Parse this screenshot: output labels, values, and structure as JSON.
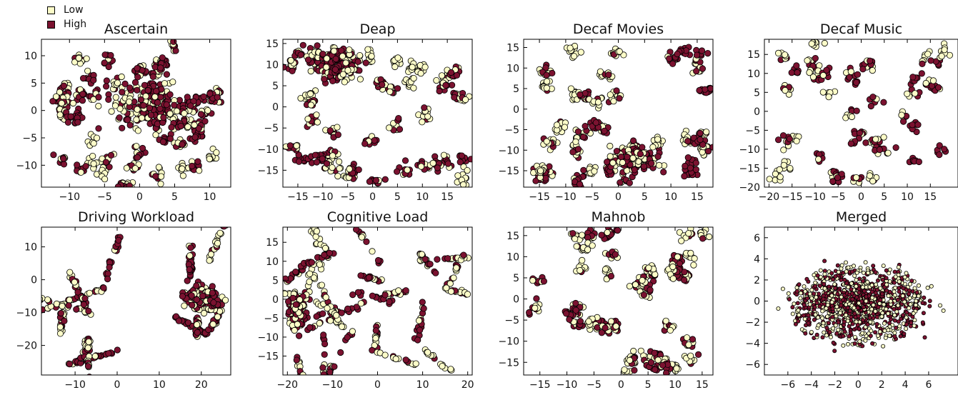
{
  "legend": {
    "low_label": "Low",
    "high_label": "High",
    "low_color": "#fcfcc8",
    "high_color": "#7b1230"
  },
  "chart_data": [
    {
      "type": "scatter",
      "title": "Ascertain",
      "xlim": [
        -14,
        13
      ],
      "ylim": [
        -14,
        13
      ],
      "xticks": [
        -10,
        -5,
        0,
        5,
        10
      ],
      "yticks": [
        -10,
        -5,
        0,
        5,
        10
      ],
      "pattern": "ring",
      "clusters": 48,
      "center_blob": [
        1,
        1,
        4.5,
        4.5
      ],
      "n": 700,
      "seed": 11
    },
    {
      "type": "scatter",
      "title": "Deap",
      "xlim": [
        -18,
        20
      ],
      "ylim": [
        -19,
        16
      ],
      "xticks": [
        -15,
        -10,
        -5,
        0,
        5,
        10,
        15
      ],
      "yticks": [
        -15,
        -10,
        -5,
        0,
        5,
        10,
        15
      ],
      "pattern": "clusters",
      "clusters": 40,
      "center_blob": [
        -7,
        10,
        3.5,
        3.5
      ],
      "n": 650,
      "seed": 23
    },
    {
      "type": "scatter",
      "title": "Decaf Movies",
      "xlim": [
        -18,
        18
      ],
      "ylim": [
        -19,
        17
      ],
      "xticks": [
        -15,
        -10,
        -5,
        0,
        5,
        10,
        15
      ],
      "yticks": [
        -15,
        -10,
        -5,
        0,
        5,
        10,
        15
      ],
      "pattern": "clusters",
      "clusters": 36,
      "center_blob": [
        3,
        -12,
        4,
        2.5
      ],
      "n": 650,
      "seed": 37
    },
    {
      "type": "scatter",
      "title": "Decaf Music",
      "xlim": [
        -21,
        21
      ],
      "ylim": [
        -20,
        19
      ],
      "xticks": [
        -20,
        -15,
        -10,
        -5,
        0,
        5,
        10,
        15
      ],
      "yticks": [
        -20,
        -15,
        -10,
        -5,
        0,
        5,
        10,
        15
      ],
      "pattern": "clusters",
      "clusters": 40,
      "center_blob": null,
      "n": 450,
      "seed": 41
    },
    {
      "type": "scatter",
      "title": "Driving Workload",
      "xlim": [
        -18,
        27
      ],
      "ylim": [
        -29,
        16
      ],
      "xticks": [
        -10,
        0,
        10,
        20
      ],
      "yticks": [
        -20,
        -10,
        0,
        10
      ],
      "pattern": "strands",
      "clusters": 14,
      "center_blob": [
        20,
        -5,
        4,
        3
      ],
      "n": 500,
      "seed": 53
    },
    {
      "type": "scatter",
      "title": "Cognitive Load",
      "xlim": [
        -21,
        21
      ],
      "ylim": [
        -20,
        19
      ],
      "xticks": [
        -20,
        -10,
        0,
        10,
        20
      ],
      "yticks": [
        -15,
        -10,
        -5,
        0,
        5,
        10,
        15
      ],
      "pattern": "strands",
      "clusters": 26,
      "center_blob": [
        -18,
        -3,
        1.5,
        4
      ],
      "n": 560,
      "seed": 67
    },
    {
      "type": "scatter",
      "title": "Mahnob",
      "xlim": [
        -18,
        17
      ],
      "ylim": [
        -18,
        17
      ],
      "xticks": [
        -15,
        -10,
        -5,
        0,
        5,
        10,
        15
      ],
      "yticks": [
        -15,
        -10,
        -5,
        0,
        5,
        10,
        15
      ],
      "pattern": "clusters",
      "clusters": 42,
      "center_blob": null,
      "n": 650,
      "seed": 79
    },
    {
      "type": "scatter",
      "title": "Merged",
      "xlim": [
        -8,
        8.5
      ],
      "ylim": [
        -7,
        7
      ],
      "xticks": [
        -6,
        -4,
        -2,
        0,
        2,
        4,
        6
      ],
      "yticks": [
        -6,
        -4,
        -2,
        0,
        2,
        4,
        6
      ],
      "pattern": "dense",
      "clusters": 0,
      "center_blob": [
        0,
        -0.3,
        4.2,
        2.4
      ],
      "n": 900,
      "seed": 97
    }
  ]
}
